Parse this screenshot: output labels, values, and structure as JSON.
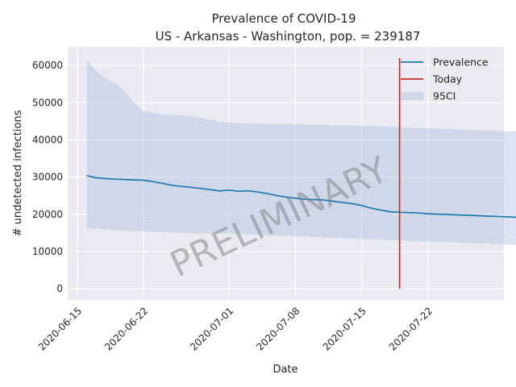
{
  "chart_data": {
    "type": "line",
    "title": "Prevalence of COVID-19",
    "subtitle": "US - Arkansas - Washington, pop. = 239187",
    "xlabel": "Date",
    "ylabel": "# undetected infections",
    "watermark": "PRELIMINARY",
    "x_start": "2020-06-16",
    "xlim": [
      "2020-06-14",
      "2020-07-30"
    ],
    "ylim": [
      -3000,
      65000
    ],
    "x_ticks": [
      "2020-06-15",
      "2020-06-22",
      "2020-07-01",
      "2020-07-08",
      "2020-07-15",
      "2020-07-22"
    ],
    "y_ticks": [
      0,
      10000,
      20000,
      30000,
      40000,
      50000,
      60000
    ],
    "y_tick_labels": [
      "0",
      "10000",
      "20000",
      "30000",
      "40000",
      "50000",
      "60000"
    ],
    "grid": true,
    "legend_position": "top-right",
    "legend": [
      {
        "label": "Prevalence",
        "kind": "line",
        "color": "#1f77b4"
      },
      {
        "label": "Today",
        "kind": "line",
        "color": "#d62728"
      },
      {
        "label": "95CI",
        "kind": "patch",
        "color": "#b0c4de"
      }
    ],
    "today": "2020-07-19",
    "series": [
      {
        "name": "Prevalence",
        "color": "#1f77b4",
        "values": [
          30400,
          29800,
          29600,
          29450,
          29350,
          29250,
          29150,
          28800,
          28300,
          27800,
          27500,
          27250,
          26950,
          26650,
          26250,
          26500,
          26200,
          26300,
          26000,
          25600,
          25050,
          24650,
          24300,
          24050,
          23950,
          23850,
          23500,
          23150,
          22850,
          22350,
          21650,
          21150,
          20700,
          20550,
          20450,
          20350,
          20150,
          20050,
          19950,
          19850,
          19750,
          19650,
          19550,
          19450,
          19350,
          19250,
          19150,
          19050,
          18950,
          18850,
          18750,
          18650,
          18600,
          18550
        ]
      },
      {
        "name": "95CI",
        "color": "#b0c4de",
        "upper": [
          61500,
          58500,
          56500,
          55200,
          53000,
          50000,
          47800,
          47200,
          46800,
          46700,
          46600,
          46300,
          45900,
          45500,
          44800,
          44600,
          44500,
          44450,
          44400,
          44300,
          44250,
          44200,
          44150,
          44100,
          44050,
          44000,
          43950,
          43900,
          43850,
          43800,
          43700,
          43600,
          43500,
          43400,
          43300,
          43200,
          43100,
          43000,
          42900,
          42800,
          42700,
          42600,
          42500,
          42400,
          42350,
          42300,
          42200,
          42150,
          42100,
          42050,
          42000,
          41900,
          41850,
          41800
        ],
        "lower": [
          16200,
          16200,
          15900,
          15700,
          15600,
          15500,
          15400,
          15300,
          15200,
          15100,
          15000,
          14950,
          14900,
          14850,
          14800,
          14750,
          14700,
          14600,
          14500,
          14400,
          14300,
          14200,
          14100,
          14000,
          13900,
          13800,
          13700,
          13600,
          13500,
          13400,
          13300,
          13200,
          13100,
          13000,
          12900,
          12800,
          12700,
          12600,
          12500,
          12400,
          12300,
          12200,
          12100,
          12000,
          11900,
          11800,
          11700,
          11600,
          11500,
          11400,
          11300,
          11200,
          11100,
          11000
        ]
      }
    ]
  }
}
